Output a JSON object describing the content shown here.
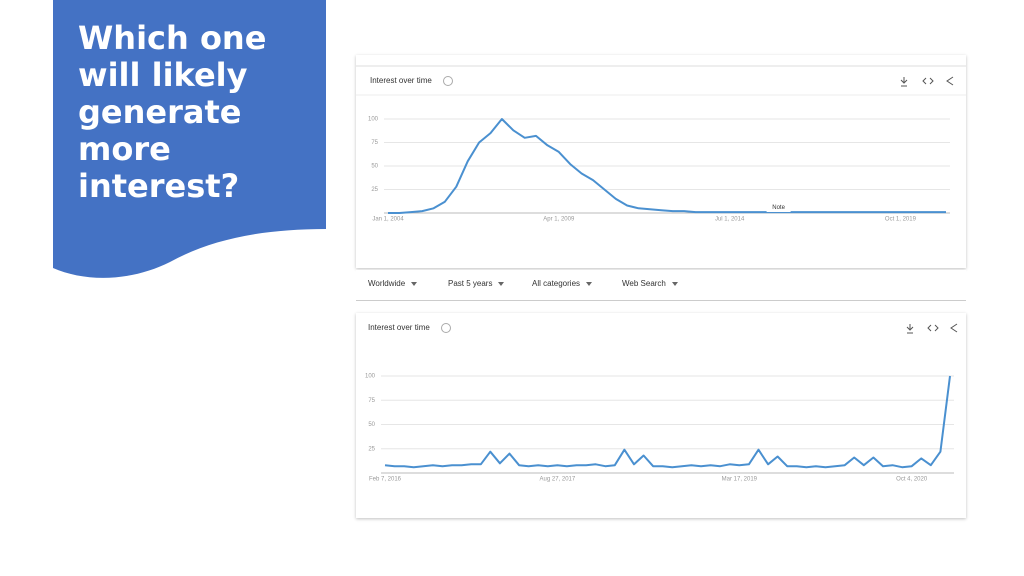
{
  "slide": {
    "heading": "Which one will likely generate more interest?"
  },
  "filters": [
    "Worldwide",
    "Past 5 years",
    "All categories",
    "Web Search"
  ],
  "chart_data": [
    {
      "type": "line",
      "title": "Interest over time",
      "annotation": "Note",
      "color": "#4a90d0",
      "grid": true,
      "ylim": [
        0,
        100
      ],
      "yticks": [
        25,
        50,
        75,
        100
      ],
      "categories": [
        "Jan 1, 2004",
        null,
        null,
        null,
        null,
        null,
        null,
        null,
        null,
        null,
        null,
        null,
        null,
        null,
        null,
        "Apr 1, 2009",
        null,
        null,
        null,
        null,
        null,
        null,
        null,
        null,
        null,
        null,
        null,
        null,
        null,
        null,
        "Jul 1, 2014",
        null,
        null,
        null,
        null,
        null,
        null,
        null,
        null,
        null,
        null,
        null,
        null,
        null,
        null,
        "Oct 1, 2019",
        null,
        null,
        null,
        null
      ],
      "values": [
        0,
        0,
        1,
        2,
        5,
        12,
        28,
        55,
        75,
        85,
        100,
        88,
        80,
        82,
        72,
        65,
        52,
        42,
        35,
        25,
        15,
        8,
        5,
        4,
        3,
        2,
        2,
        1,
        1,
        1,
        1,
        1,
        1,
        1,
        1,
        1,
        1,
        1,
        1,
        1,
        1,
        1,
        1,
        1,
        1,
        1,
        1,
        1,
        1,
        1
      ]
    },
    {
      "type": "line",
      "title": "Interest over time",
      "color": "#4a90d0",
      "grid": true,
      "ylim": [
        0,
        100
      ],
      "yticks": [
        25,
        50,
        75,
        100
      ],
      "categories": [
        "Feb 7, 2016",
        null,
        null,
        null,
        null,
        null,
        null,
        null,
        null,
        null,
        null,
        null,
        null,
        null,
        null,
        null,
        null,
        null,
        "Aug 27, 2017",
        null,
        null,
        null,
        null,
        null,
        null,
        null,
        null,
        null,
        null,
        null,
        null,
        null,
        null,
        null,
        null,
        null,
        null,
        "Mar 17, 2019",
        null,
        null,
        null,
        null,
        null,
        null,
        null,
        null,
        null,
        null,
        null,
        null,
        null,
        null,
        null,
        null,
        null,
        "Oct 4, 2020",
        null,
        null,
        null,
        null
      ],
      "values": [
        8,
        7,
        7,
        6,
        7,
        8,
        7,
        8,
        8,
        9,
        9,
        22,
        10,
        20,
        8,
        7,
        8,
        7,
        8,
        7,
        8,
        8,
        9,
        7,
        8,
        24,
        9,
        18,
        7,
        7,
        6,
        7,
        8,
        7,
        8,
        7,
        9,
        8,
        9,
        24,
        9,
        17,
        7,
        7,
        6,
        7,
        6,
        7,
        8,
        16,
        8,
        16,
        7,
        8,
        6,
        7,
        15,
        8,
        22,
        100
      ]
    }
  ]
}
